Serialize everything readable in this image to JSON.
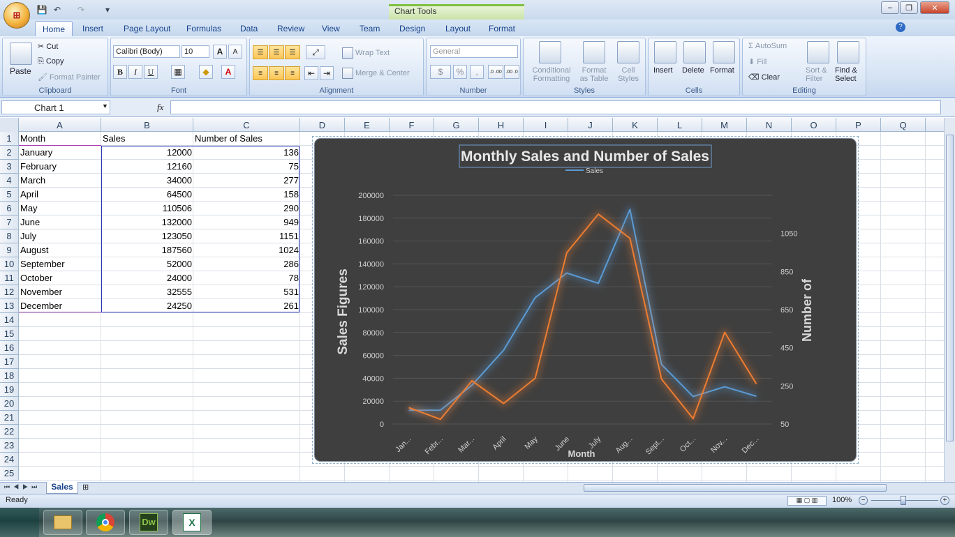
{
  "titlebar": {
    "context_tab": "Chart Tools",
    "min": "–",
    "restore": "❐",
    "close": "✕"
  },
  "tabs": [
    "Home",
    "Insert",
    "Page Layout",
    "Formulas",
    "Data",
    "Review",
    "View",
    "Team",
    "Design",
    "Layout",
    "Format"
  ],
  "ribbon": {
    "clipboard": {
      "label": "Clipboard",
      "paste": "Paste",
      "cut": "Cut",
      "copy": "Copy",
      "format_painter": "Format Painter"
    },
    "font": {
      "label": "Font",
      "font_name": "Calibri (Body)",
      "font_size": "10",
      "bold": "B",
      "italic": "I",
      "underline": "U",
      "grow": "A",
      "shrink": "A"
    },
    "alignment": {
      "label": "Alignment",
      "wrap_text": "Wrap Text",
      "merge_center": "Merge & Center"
    },
    "number": {
      "label": "Number",
      "format": "General",
      "currency": "$",
      "percent": "%",
      "comma": ",",
      "inc_dec": ".0 .00",
      "dec_dec": ".00 .0"
    },
    "styles": {
      "label": "Styles",
      "cond": "Conditional",
      "cond2": "Formatting",
      "fmt_table": "Format",
      "fmt_table2": "as Table",
      "cell_styles": "Cell",
      "cell_styles2": "Styles"
    },
    "cells": {
      "label": "Cells",
      "insert": "Insert",
      "delete": "Delete",
      "format": "Format"
    },
    "editing": {
      "label": "Editing",
      "autosum": "AutoSum",
      "fill": "Fill",
      "clear": "Clear",
      "sort": "Sort &",
      "sort2": "Filter",
      "find": "Find &",
      "find2": "Select"
    }
  },
  "formula": {
    "namebox": "Chart 1",
    "fx": "fx"
  },
  "columns": [
    "A",
    "B",
    "C",
    "D",
    "E",
    "F",
    "G",
    "H",
    "I",
    "J",
    "K",
    "L",
    "M",
    "N",
    "O",
    "P",
    "Q"
  ],
  "rows": [
    "1",
    "2",
    "3",
    "4",
    "5",
    "6",
    "7",
    "8",
    "9",
    "10",
    "11",
    "12",
    "13",
    "14",
    "15",
    "16",
    "17",
    "18",
    "19",
    "20",
    "21",
    "22",
    "23",
    "24",
    "25"
  ],
  "table": {
    "headers": [
      "Month",
      "Sales",
      "Number of Sales"
    ],
    "data": [
      [
        "January",
        "12000",
        "136"
      ],
      [
        "February",
        "12160",
        "75"
      ],
      [
        "March",
        "34000",
        "277"
      ],
      [
        "April",
        "64500",
        "158"
      ],
      [
        "May",
        "110506",
        "290"
      ],
      [
        "June",
        "132000",
        "949"
      ],
      [
        "July",
        "123050",
        "1151"
      ],
      [
        "August",
        "187560",
        "1024"
      ],
      [
        "September",
        "52000",
        "286"
      ],
      [
        "October",
        "24000",
        "78"
      ],
      [
        "November",
        "32555",
        "531"
      ],
      [
        "December",
        "24250",
        "261"
      ]
    ]
  },
  "chart_data": {
    "type": "line",
    "title": "Monthly Sales and Number of Sales",
    "legend": "Sales",
    "xlabel": "Month",
    "ylabel": "Sales Figures",
    "y2label": "Number of",
    "categories": [
      "Jan...",
      "Febr...",
      "Mar...",
      "April",
      "May",
      "June",
      "July",
      "Aug...",
      "Sept...",
      "Oct...",
      "Nov...",
      "Dec..."
    ],
    "ylim": [
      0,
      200000
    ],
    "yticks": [
      "0",
      "20000",
      "40000",
      "60000",
      "80000",
      "100000",
      "120000",
      "140000",
      "160000",
      "180000",
      "200000"
    ],
    "y2lim": [
      50,
      1250
    ],
    "y2ticks": [
      "50",
      "250",
      "450",
      "650",
      "850",
      "1050"
    ],
    "series": [
      {
        "name": "Sales",
        "axis": "left",
        "color": "#5b9bd5",
        "values": [
          12000,
          12160,
          34000,
          64500,
          110506,
          132000,
          123050,
          187560,
          52000,
          24000,
          32555,
          24250
        ]
      },
      {
        "name": "Number of Sales",
        "axis": "right",
        "color": "#ed7d31",
        "values": [
          136,
          75,
          277,
          158,
          290,
          949,
          1151,
          1024,
          286,
          78,
          531,
          261
        ]
      }
    ]
  },
  "sheets": {
    "active": "Sales"
  },
  "status": {
    "ready": "Ready",
    "zoom": "100%"
  }
}
